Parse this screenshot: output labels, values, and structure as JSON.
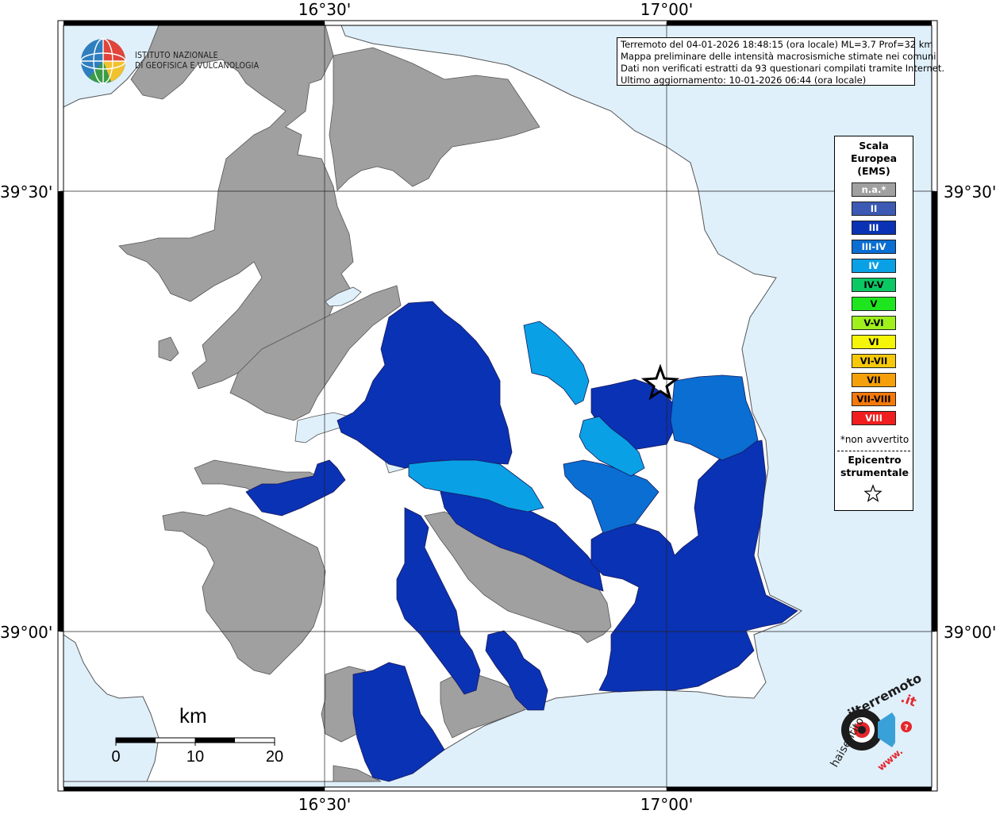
{
  "map": {
    "title_lines": [
      "Terremoto del 04-01-2026 18:48:15 (ora locale) ML=3.7 Prof=32 km",
      "Mappa preliminare delle intensità macrosismiche stimate nei comuni",
      "Dati non verificati estratti da 93 questionari compilati tramite Internet.",
      "Ultimo aggiornamento: 10-01-2026 06:44 (ora locale)"
    ],
    "axes": {
      "lon_ticks": [
        "16°30'",
        "17°00'"
      ],
      "lat_ticks": [
        "39°30'",
        "39°00'"
      ]
    }
  },
  "ingv_logo": {
    "line1": "ISTITUTO NAZIONALE",
    "line2": "DI GEOFISICA E VULCANOLOGIA"
  },
  "legend": {
    "title": [
      "Scala",
      "Europea",
      "(EMS)"
    ],
    "items": [
      {
        "label": "n.a.*",
        "color": "#a0a0a0",
        "text_color": "#ffffff"
      },
      {
        "label": "II",
        "color": "#3c5ab4",
        "text_color": "#ffffff"
      },
      {
        "label": "III",
        "color": "#0a32b4",
        "text_color": "#ffffff"
      },
      {
        "label": "III-IV",
        "color": "#0a6ed2",
        "text_color": "#ffffff"
      },
      {
        "label": "IV",
        "color": "#0aa0e6",
        "text_color": "#ffffff"
      },
      {
        "label": "IV-V",
        "color": "#0ac864",
        "text_color": "#000000"
      },
      {
        "label": "V",
        "color": "#1ee61e",
        "text_color": "#000000"
      },
      {
        "label": "V-VI",
        "color": "#a0f01e",
        "text_color": "#000000"
      },
      {
        "label": "VI",
        "color": "#f5f50a",
        "text_color": "#000000"
      },
      {
        "label": "VI-VII",
        "color": "#f5c80a",
        "text_color": "#000000"
      },
      {
        "label": "VII",
        "color": "#f5a00a",
        "text_color": "#000000"
      },
      {
        "label": "VII-VIII",
        "color": "#f5780a",
        "text_color": "#000000"
      },
      {
        "label": "VIII",
        "color": "#f01e1e",
        "text_color": "#ffffff"
      }
    ],
    "not_felt_note": "*non avvertito",
    "epicenter_label": [
      "Epicentro",
      "strumentale"
    ]
  },
  "scale_bar": {
    "unit": "km",
    "labels": [
      "0",
      "10",
      "20"
    ]
  },
  "hst_logo": {
    "text1": "haisentito",
    "text2": "ilterremoto",
    "text3": ".it",
    "text4": "www."
  },
  "colors": {
    "sea": "#dff0fb",
    "land_unsurveyed": "#ffffff",
    "not_available": "#a0a0a0",
    "ems_III": "#0a32b4",
    "ems_III_IV": "#0a6ed2",
    "ems_IV": "#0aa0e6"
  }
}
